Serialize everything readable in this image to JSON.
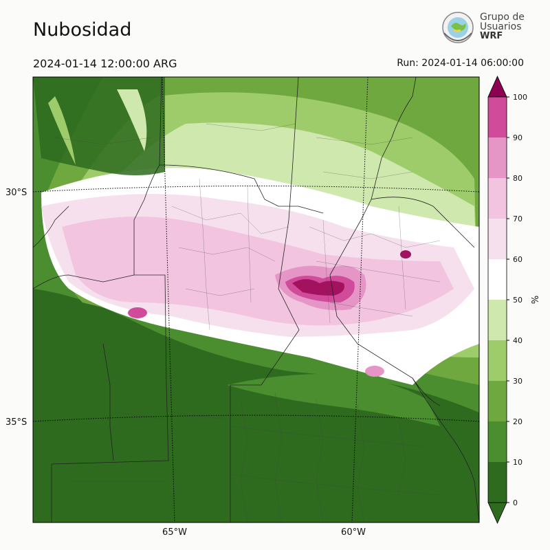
{
  "header": {
    "title": "Nubosidad",
    "valid_time": "2024-01-14 12:00:00 ARG",
    "run_time": "Run: 2024-01-14 06:00:00"
  },
  "logo": {
    "line1": "Grupo de",
    "line2": "Usuarios",
    "line3": "WRF",
    "icon": "globe-emblem-icon"
  },
  "map": {
    "variable": "cloud cover",
    "lat_labels": [
      "30°S",
      "35°S"
    ],
    "lon_labels": [
      "65°W",
      "60°W"
    ]
  },
  "colorbar": {
    "unit_label": "%",
    "ticks": [
      "0",
      "10",
      "20",
      "30",
      "40",
      "50",
      "60",
      "70",
      "80",
      "90",
      "100"
    ],
    "colors": [
      "#2e6b1f",
      "#4b8e2f",
      "#6fa83e",
      "#9fcc6b",
      "#cfe8ae",
      "#ffffff",
      "#f6e0ee",
      "#f2c4df",
      "#e596c6",
      "#d04c9a",
      "#a3125f"
    ],
    "extend_low_color": "#2e6b1f",
    "extend_high_color": "#8e0152"
  }
}
